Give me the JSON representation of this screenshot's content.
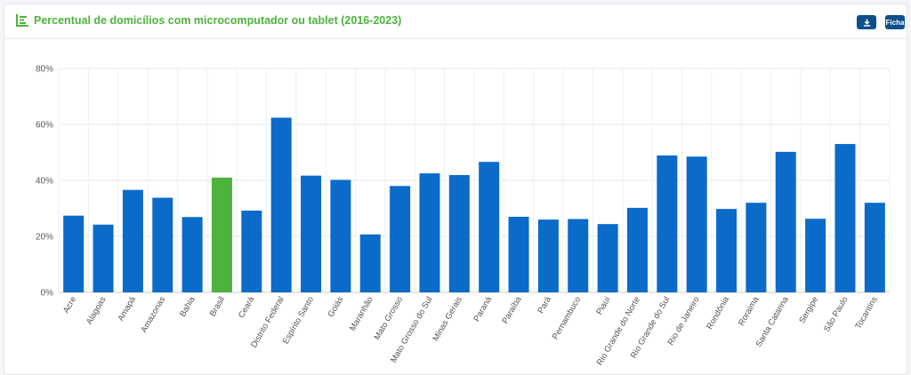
{
  "header": {
    "title": "Percentual de domicílios com microcomputador ou tablet (2016-2023)",
    "download_icon": "download-icon",
    "ficha_label": "Ficha"
  },
  "colors": {
    "accent": "#4db33d",
    "bar": "#0a6bc9",
    "highlight": "#4db33d",
    "button": "#0d4f8b"
  },
  "chart_data": {
    "type": "bar",
    "categories": [
      "Acre",
      "Alagoas",
      "Amapá",
      "Amazonas",
      "Bahia",
      "Brasil",
      "Ceará",
      "Distrito Federal",
      "Espírito Santo",
      "Goiás",
      "Maranhão",
      "Mato Grosso",
      "Mato Grosso do Sul",
      "Minas Gerais",
      "Paraná",
      "Paraíba",
      "Pará",
      "Pernambuco",
      "Piauí",
      "Rio Grande do Norte",
      "Rio Grande do Sul",
      "Rio de Janeiro",
      "Rondônia",
      "Roraima",
      "Santa Catarina",
      "Sergipe",
      "São Paulo",
      "Tocantins"
    ],
    "values": [
      27.4,
      24.2,
      36.6,
      33.8,
      26.9,
      41.0,
      29.2,
      62.4,
      41.7,
      40.2,
      20.7,
      38.0,
      42.5,
      41.9,
      46.6,
      27.0,
      26.0,
      26.2,
      24.4,
      30.2,
      48.9,
      48.5,
      29.8,
      32.0,
      50.2,
      26.3,
      53.0,
      32.0
    ],
    "highlight": "Brasil",
    "yticks": [
      "0%",
      "20%",
      "40%",
      "60%",
      "80%"
    ],
    "ylim": [
      0,
      80
    ],
    "grid": true,
    "xlabel": "",
    "ylabel": ""
  }
}
